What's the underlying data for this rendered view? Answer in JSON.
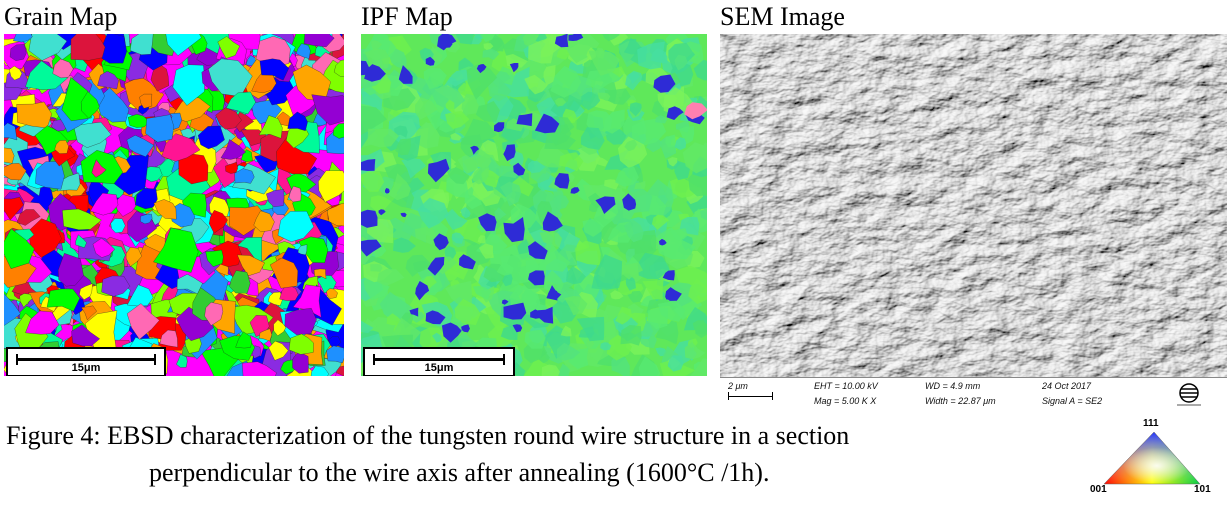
{
  "panels": {
    "grain": {
      "title": "Grain Map",
      "scalebar": "15μm"
    },
    "ipf": {
      "title": "IPF Map",
      "scalebar": "15μm"
    },
    "sem": {
      "title": "SEM Image",
      "scale": "2 μm",
      "eht": "EHT = 10.00 kV",
      "mag": "Mag =   5.00 K X",
      "wd": "WD =  4.9 mm",
      "width": "Width = 22.87 μm",
      "date": "24 Oct 2017",
      "signal": "Signal A = SE2"
    }
  },
  "caption": {
    "line1": "Figure 4: EBSD characterization of the tungsten round wire structure in a section",
    "line2": "perpendicular to the wire axis after annealing (1600°C /1h)."
  },
  "ipf_key": {
    "top": "111",
    "left": "001",
    "right": "101"
  },
  "colors": {
    "grain_palette": [
      "#ff00ff",
      "#0000ff",
      "#00ff00",
      "#ffff00",
      "#ff0000",
      "#00ffff",
      "#ff8000",
      "#9400d3",
      "#ff69b4",
      "#32cd32",
      "#1e90ff",
      "#dc143c",
      "#8a2be2",
      "#00fa9a",
      "#ffa500",
      "#ff1493",
      "#40e0d0",
      "#7fff00"
    ],
    "ipf_base": "#5fe85a",
    "ipf_blue": "#2e2bd6"
  }
}
